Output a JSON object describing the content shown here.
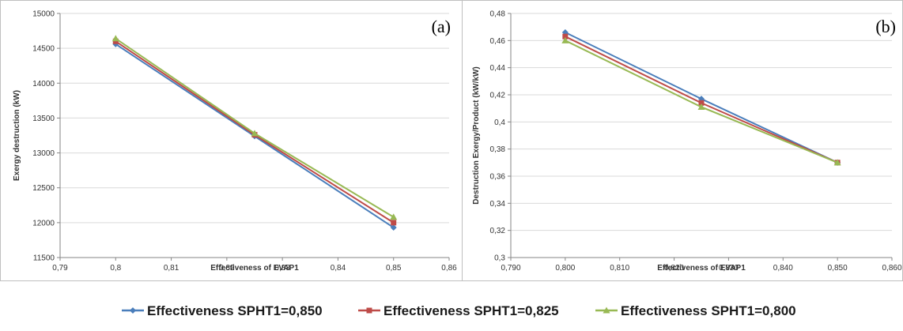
{
  "chart_data": [
    {
      "type": "line",
      "panel_label": "(a)",
      "xlabel": "Effectiveness of EVAP1",
      "ylabel": "Exergy destruction (kW)",
      "xlim": [
        0.79,
        0.86
      ],
      "ylim": [
        11500,
        15000
      ],
      "x_ticks": [
        0.79,
        0.8,
        0.81,
        0.82,
        0.83,
        0.84,
        0.85,
        0.86
      ],
      "x_tick_labels": [
        "0,79",
        "0,8",
        "0,81",
        "0,82",
        "0,83",
        "0,84",
        "0,85",
        "0,86"
      ],
      "y_ticks": [
        11500,
        12000,
        12500,
        13000,
        13500,
        14000,
        14500,
        15000
      ],
      "y_tick_labels": [
        "11500",
        "12000",
        "12500",
        "13000",
        "13500",
        "14000",
        "14500",
        "15000"
      ],
      "grid": "horizontal",
      "x": [
        0.8,
        0.825,
        0.85
      ],
      "series": [
        {
          "name": "Effectiveness  SPHT1=0,850",
          "values": [
            14560,
            13240,
            11930
          ]
        },
        {
          "name": "Effectiveness  SPHT1=0,825",
          "values": [
            14600,
            13260,
            12000
          ]
        },
        {
          "name": "Effectiveness  SPHT1=0,800",
          "values": [
            14640,
            13280,
            12080
          ]
        }
      ]
    },
    {
      "type": "line",
      "panel_label": "(b)",
      "xlabel": "Effectiveness of EVAP1",
      "ylabel": "Destruction  Exergy/Product (kW/kW)",
      "xlim": [
        0.79,
        0.86
      ],
      "ylim": [
        0.3,
        0.48
      ],
      "x_ticks": [
        0.79,
        0.8,
        0.81,
        0.82,
        0.83,
        0.84,
        0.85,
        0.86
      ],
      "x_tick_labels": [
        "0,790",
        "0,800",
        "0,810",
        "0,820",
        "0,830",
        "0,840",
        "0,850",
        "0,860"
      ],
      "y_ticks": [
        0.3,
        0.32,
        0.34,
        0.36,
        0.38,
        0.4,
        0.42,
        0.44,
        0.46,
        0.48
      ],
      "y_tick_labels": [
        "0,3",
        "0,32",
        "0,34",
        "0,36",
        "0,38",
        "0,4",
        "0,42",
        "0,44",
        "0,46",
        "0,48"
      ],
      "grid": "horizontal",
      "x": [
        0.8,
        0.825,
        0.85
      ],
      "series": [
        {
          "name": "Effectiveness  SPHT1=0,850",
          "values": [
            0.466,
            0.417,
            0.37
          ]
        },
        {
          "name": "Effectiveness  SPHT1=0,825",
          "values": [
            0.463,
            0.414,
            0.37
          ]
        },
        {
          "name": "Effectiveness  SPHT1=0,800",
          "values": [
            0.46,
            0.411,
            0.37
          ]
        }
      ]
    }
  ],
  "legend": {
    "placement": "bottom-center",
    "items": [
      {
        "label": "Effectiveness  SPHT1=0,850",
        "color": "#4a7ebb",
        "marker": "diamond"
      },
      {
        "label": "Effectiveness  SPHT1=0,825",
        "color": "#be4b48",
        "marker": "square"
      },
      {
        "label": "Effectiveness  SPHT1=0,800",
        "color": "#98b954",
        "marker": "triangle"
      }
    ]
  }
}
